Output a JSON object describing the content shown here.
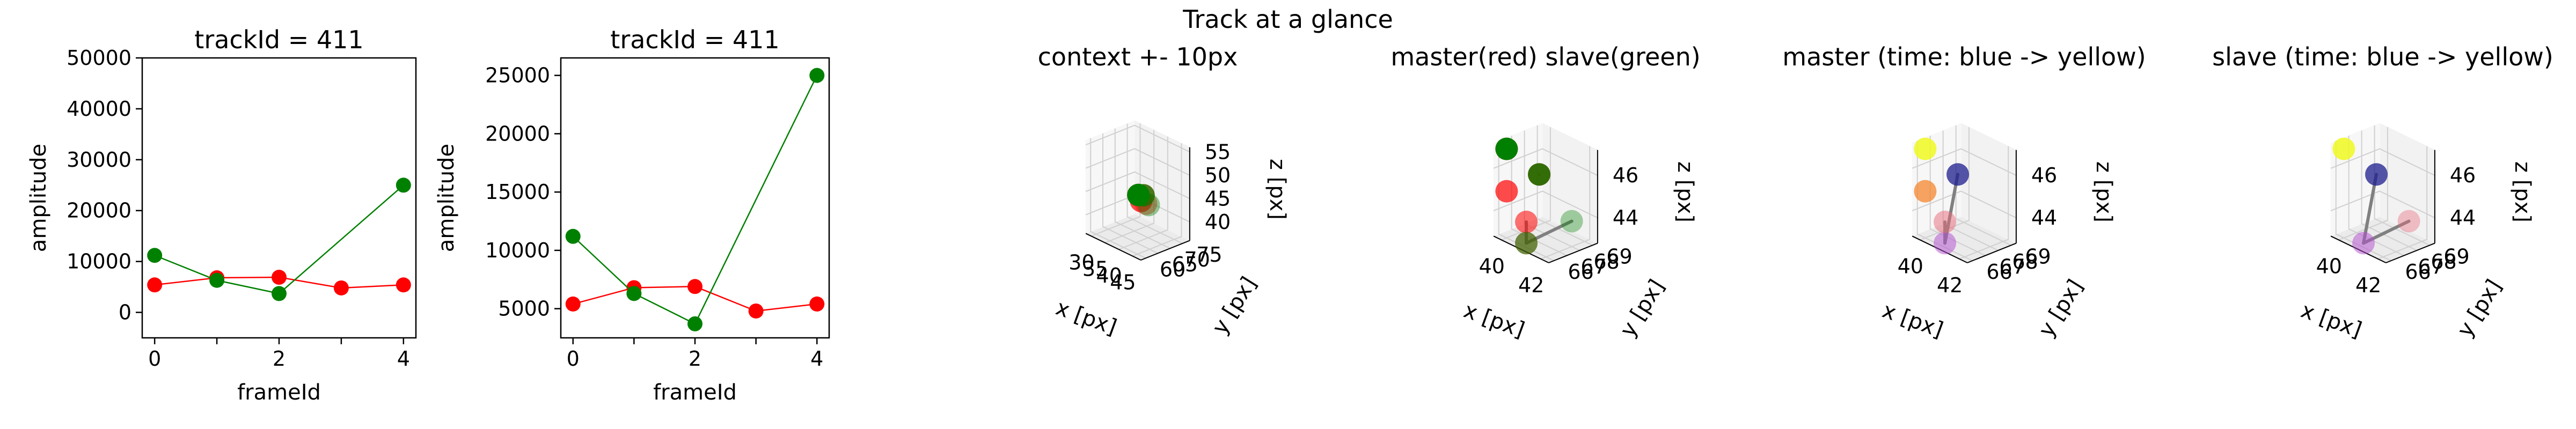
{
  "suptitle": "Track at a glance",
  "colors": {
    "master": "#ff0000",
    "slave": "#008000",
    "segment": "#808080",
    "pane": "#f2f2f2",
    "grid": "#d0d0d0"
  },
  "chart_data": [
    {
      "type": "line",
      "title": "trackId = 411",
      "xlabel": "frameId",
      "ylabel": "amplitude",
      "xlim": [
        -0.2,
        4.2
      ],
      "ylim": [
        -5000,
        50000
      ],
      "xticks": [
        "0",
        "2",
        "4"
      ],
      "yticks": [
        "0",
        "10000",
        "20000",
        "30000",
        "40000",
        "50000"
      ],
      "series": [
        {
          "color": "#ff0000",
          "x": [
            0,
            1,
            2,
            3,
            4
          ],
          "y": [
            5400,
            6800,
            6900,
            4800,
            5400
          ]
        },
        {
          "color": "#008000",
          "x": [
            0,
            1,
            2,
            4
          ],
          "y": [
            11200,
            6300,
            3700,
            25000
          ]
        }
      ]
    },
    {
      "type": "line",
      "title": "trackId = 411",
      "xlabel": "frameId",
      "ylabel": "amplitude",
      "xlim": [
        -0.2,
        4.2
      ],
      "ylim": [
        2500,
        26500
      ],
      "xticks": [
        "0",
        "2",
        "4"
      ],
      "yticks": [
        "5000",
        "10000",
        "15000",
        "20000",
        "25000"
      ],
      "series": [
        {
          "color": "#ff0000",
          "x": [
            0,
            1,
            2,
            3,
            4
          ],
          "y": [
            5400,
            6800,
            6900,
            4800,
            5400
          ]
        },
        {
          "color": "#008000",
          "x": [
            0,
            1,
            2,
            4
          ],
          "y": [
            11200,
            6300,
            3700,
            25000
          ]
        }
      ]
    },
    {
      "type": "scatter",
      "projection": "3d",
      "title": "context +- 10px",
      "xlabel": "x [px]",
      "ylabel": "y [px]",
      "zlabel": "z [px]",
      "xlim": [
        28,
        48
      ],
      "ylim": [
        58,
        78
      ],
      "zlim": [
        36,
        56
      ],
      "xticks": [
        "30",
        "35",
        "40",
        "45"
      ],
      "yticks": [
        "60",
        "65",
        "70",
        "75"
      ],
      "zticks": [
        "40",
        "45",
        "50",
        "55"
      ],
      "points": [
        {
          "x": 40,
          "y": 66,
          "z": 46,
          "color": "#ff0000",
          "alpha": 1.0
        },
        {
          "x": 41,
          "y": 66,
          "z": 45,
          "color": "#ff0000",
          "alpha": 0.7
        },
        {
          "x": 41,
          "y": 67,
          "z": 46,
          "color": "#ff0000",
          "alpha": 0.6
        },
        {
          "x": 41,
          "y": 68,
          "z": 44,
          "color": "#ff0000",
          "alpha": 0.4
        },
        {
          "x": 40,
          "y": 66,
          "z": 46,
          "color": "#008000",
          "alpha": 1.0
        },
        {
          "x": 41,
          "y": 67,
          "z": 46,
          "color": "#008000",
          "alpha": 0.7
        },
        {
          "x": 42,
          "y": 68,
          "z": 44,
          "color": "#008000",
          "alpha": 0.4
        }
      ],
      "segments": []
    },
    {
      "type": "scatter",
      "projection": "3d",
      "title": "master(red) slave(green)",
      "xlabel": "x [px]",
      "ylabel": "y [px]",
      "zlabel": "z [px]",
      "xlim": [
        39.6,
        42.4
      ],
      "ylim": [
        65.6,
        69.4
      ],
      "zlim": [
        42.8,
        47.2
      ],
      "xticks": [
        "40",
        "42"
      ],
      "yticks": [
        "66",
        "67",
        "68",
        "69"
      ],
      "zticks": [
        "44",
        "46"
      ],
      "points": [
        {
          "x": 40,
          "y": 66,
          "z": 47,
          "color": "#ff0000",
          "alpha": 1.0
        },
        {
          "x": 41,
          "y": 67,
          "z": 46,
          "color": "#ff0000",
          "alpha": 0.85
        },
        {
          "x": 40,
          "y": 66,
          "z": 45,
          "color": "#ff0000",
          "alpha": 0.7
        },
        {
          "x": 41,
          "y": 66,
          "z": 44,
          "color": "#ff0000",
          "alpha": 0.55
        },
        {
          "x": 41,
          "y": 66,
          "z": 43,
          "color": "#ff0000",
          "alpha": 0.4
        },
        {
          "x": 40,
          "y": 66,
          "z": 47,
          "color": "#008000",
          "alpha": 1.0
        },
        {
          "x": 41,
          "y": 67,
          "z": 46,
          "color": "#008000",
          "alpha": 0.8
        },
        {
          "x": 41,
          "y": 66,
          "z": 43,
          "color": "#008000",
          "alpha": 0.55
        },
        {
          "x": 42,
          "y": 68,
          "z": 44,
          "color": "#008000",
          "alpha": 0.35
        }
      ],
      "segments": [
        [
          {
            "x": 40,
            "y": 66,
            "z": 47
          },
          {
            "x": 40,
            "y": 66,
            "z": 47
          }
        ],
        [
          {
            "x": 41,
            "y": 67,
            "z": 46
          },
          {
            "x": 41,
            "y": 67,
            "z": 46
          }
        ],
        [
          {
            "x": 41,
            "y": 66,
            "z": 44
          },
          {
            "x": 41,
            "y": 66,
            "z": 43
          }
        ],
        [
          {
            "x": 41,
            "y": 66,
            "z": 43
          },
          {
            "x": 42,
            "y": 68,
            "z": 44
          }
        ]
      ]
    },
    {
      "type": "scatter",
      "projection": "3d",
      "title": "master (time: blue -> yellow)",
      "xlabel": "x [px]",
      "ylabel": "y [px]",
      "zlabel": "z [px]",
      "xlim": [
        39.6,
        42.4
      ],
      "ylim": [
        65.6,
        69.4
      ],
      "zlim": [
        42.8,
        47.2
      ],
      "xticks": [
        "40",
        "42"
      ],
      "yticks": [
        "66",
        "67",
        "68",
        "69"
      ],
      "zticks": [
        "44",
        "46"
      ],
      "points": [
        {
          "x": 41,
          "y": 67,
          "z": 46,
          "color": "#1c1c8c",
          "alpha": 0.75
        },
        {
          "x": 41,
          "y": 66,
          "z": 43,
          "color": "#b24bcf",
          "alpha": 0.5
        },
        {
          "x": 41,
          "y": 66,
          "z": 44,
          "color": "#e86a7a",
          "alpha": 0.5
        },
        {
          "x": 40,
          "y": 66,
          "z": 45,
          "color": "#f5862d",
          "alpha": 0.75
        },
        {
          "x": 40,
          "y": 66,
          "z": 47,
          "color": "#f0f921",
          "alpha": 0.85
        }
      ],
      "segments": [
        [
          {
            "x": 41,
            "y": 67,
            "z": 46
          },
          {
            "x": 41,
            "y": 66,
            "z": 43
          }
        ],
        [
          {
            "x": 41,
            "y": 66,
            "z": 43
          },
          {
            "x": 41,
            "y": 66,
            "z": 44
          }
        ]
      ]
    },
    {
      "type": "scatter",
      "projection": "3d",
      "title": "slave (time: blue -> yellow)",
      "xlabel": "x [px]",
      "ylabel": "y [px]",
      "zlabel": "z [px]",
      "xlim": [
        39.6,
        42.4
      ],
      "ylim": [
        65.6,
        69.4
      ],
      "zlim": [
        42.8,
        47.2
      ],
      "xticks": [
        "40",
        "42"
      ],
      "yticks": [
        "66",
        "67",
        "68",
        "69"
      ],
      "zticks": [
        "44",
        "46"
      ],
      "points": [
        {
          "x": 41,
          "y": 67,
          "z": 46,
          "color": "#1c1c8c",
          "alpha": 0.75
        },
        {
          "x": 41,
          "y": 66,
          "z": 43,
          "color": "#b24bcf",
          "alpha": 0.5
        },
        {
          "x": 42,
          "y": 68,
          "z": 44,
          "color": "#e86a7a",
          "alpha": 0.4
        },
        {
          "x": 40,
          "y": 66,
          "z": 47,
          "color": "#f0f921",
          "alpha": 0.85
        }
      ],
      "segments": [
        [
          {
            "x": 41,
            "y": 67,
            "z": 46
          },
          {
            "x": 41,
            "y": 66,
            "z": 43
          }
        ],
        [
          {
            "x": 41,
            "y": 66,
            "z": 43
          },
          {
            "x": 42,
            "y": 68,
            "z": 44
          }
        ]
      ]
    }
  ]
}
